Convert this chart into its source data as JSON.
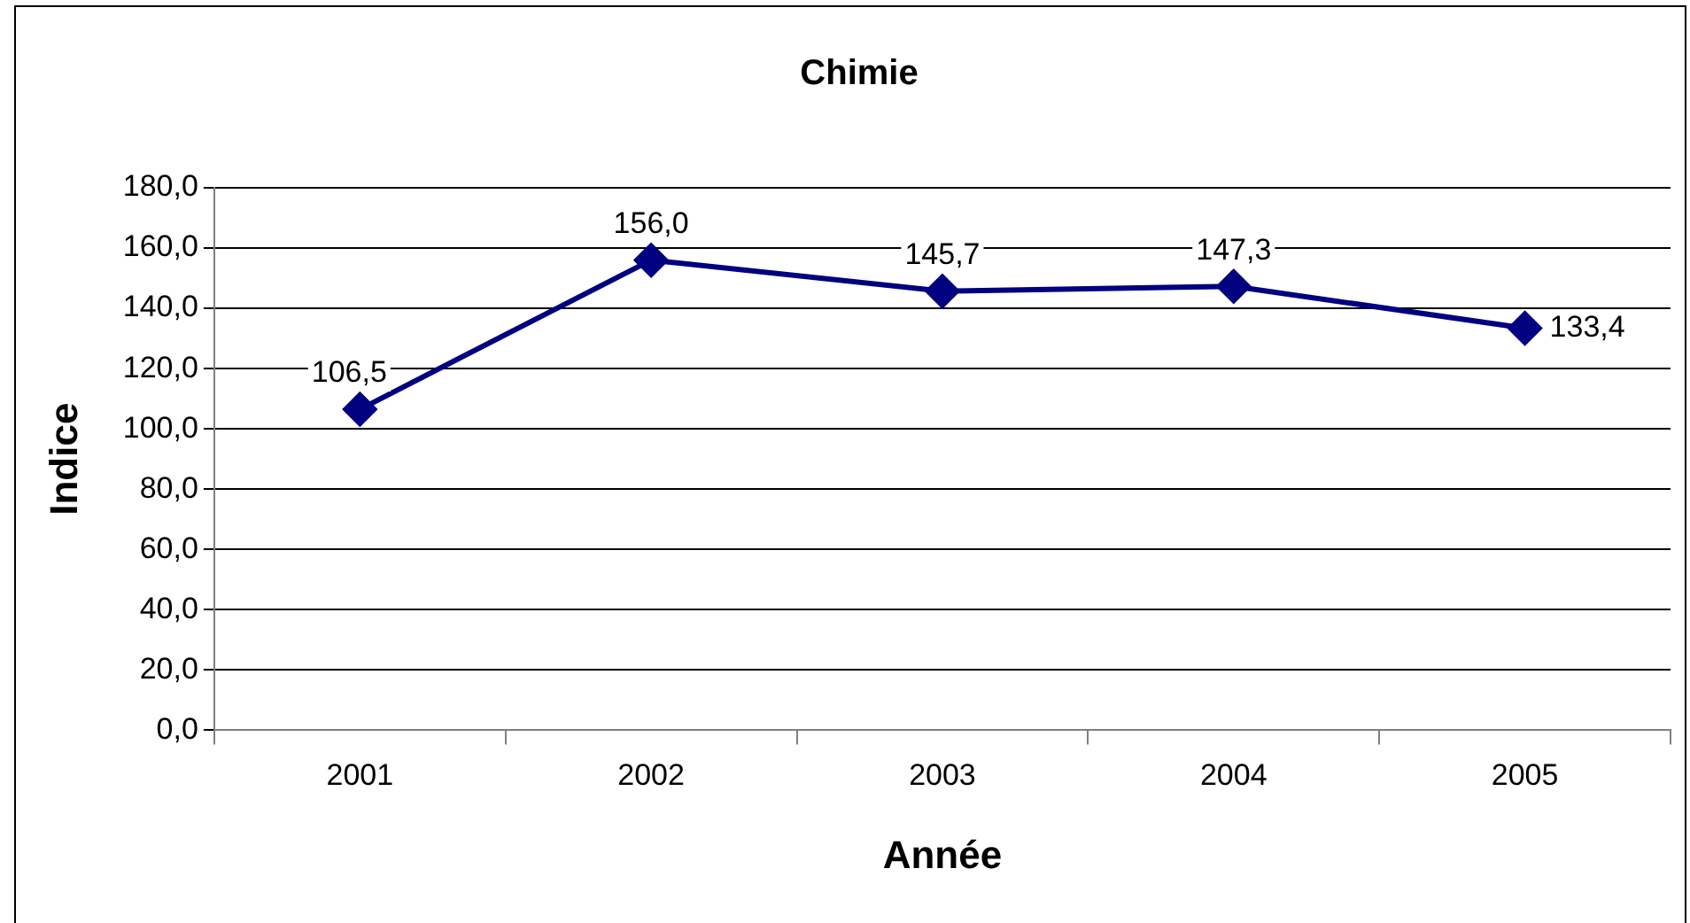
{
  "chart_data": {
    "type": "line",
    "title": "Chimie",
    "xlabel": "Année",
    "ylabel": "Indice",
    "categories": [
      "2001",
      "2002",
      "2003",
      "2004",
      "2005"
    ],
    "series": [
      {
        "color": "#000080",
        "values": [
          106.5,
          156.0,
          145.7,
          147.3,
          133.4
        ],
        "value_labels": [
          "106,5",
          "156,0",
          "145,7",
          "147,3",
          "133,4"
        ]
      }
    ],
    "ylim": [
      0,
      180
    ],
    "yticks": [
      {
        "value": 0,
        "label": "0,0"
      },
      {
        "value": 20,
        "label": "20,0"
      },
      {
        "value": 40,
        "label": "40,0"
      },
      {
        "value": 60,
        "label": "60,0"
      },
      {
        "value": 80,
        "label": "80,0"
      },
      {
        "value": 100,
        "label": "100,0"
      },
      {
        "value": 120,
        "label": "120,0"
      },
      {
        "value": 140,
        "label": "140,0"
      },
      {
        "value": 160,
        "label": "160,0"
      },
      {
        "value": 180,
        "label": "180,0"
      }
    ],
    "grid": "y",
    "legend": false,
    "marker": "diamond",
    "line_style": "solid"
  }
}
